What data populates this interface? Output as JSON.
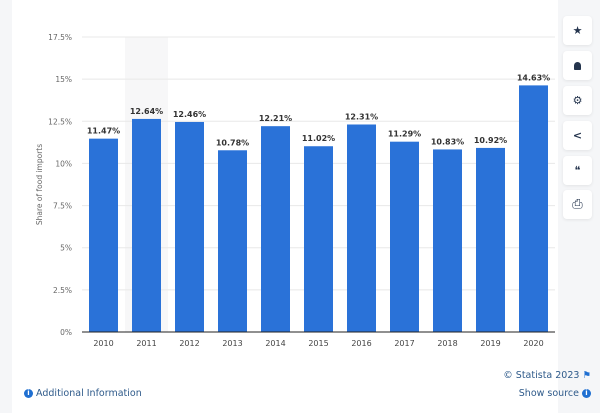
{
  "chart_data": {
    "type": "bar",
    "categories": [
      "2010",
      "2011",
      "2012",
      "2013",
      "2014",
      "2015",
      "2016",
      "2017",
      "2018",
      "2019",
      "2020"
    ],
    "values": [
      11.47,
      12.64,
      12.46,
      10.78,
      12.21,
      11.02,
      12.31,
      11.29,
      10.83,
      10.92,
      14.63
    ],
    "data_labels": [
      "11.47%",
      "12.64%",
      "12.46%",
      "10.78%",
      "12.21%",
      "11.02%",
      "12.31%",
      "11.29%",
      "10.83%",
      "10.92%",
      "14.63%"
    ],
    "ylabel": "Share of food imports",
    "ylim": [
      0,
      17.5
    ],
    "yticks": [
      0,
      2.5,
      5,
      7.5,
      10,
      12.5,
      15,
      17.5
    ],
    "ytick_labels": [
      "0%",
      "2.5%",
      "5%",
      "7.5%",
      "10%",
      "12.5%",
      "15%",
      "17.5%"
    ],
    "grid": true,
    "bar_color": "#2a72d8"
  },
  "sidebar": {
    "buttons": [
      {
        "icon": "star-icon",
        "glyph": "★"
      },
      {
        "icon": "bell-icon",
        "glyph": "🔔"
      },
      {
        "icon": "gear-icon",
        "glyph": "⚙"
      },
      {
        "icon": "share-icon",
        "glyph": "<"
      },
      {
        "icon": "quote-icon",
        "glyph": "❝"
      },
      {
        "icon": "print-icon",
        "glyph": "⎙"
      }
    ]
  },
  "footer": {
    "additional_info": "Additional Information",
    "copyright": "© Statista 2023",
    "show_source": "Show source"
  }
}
